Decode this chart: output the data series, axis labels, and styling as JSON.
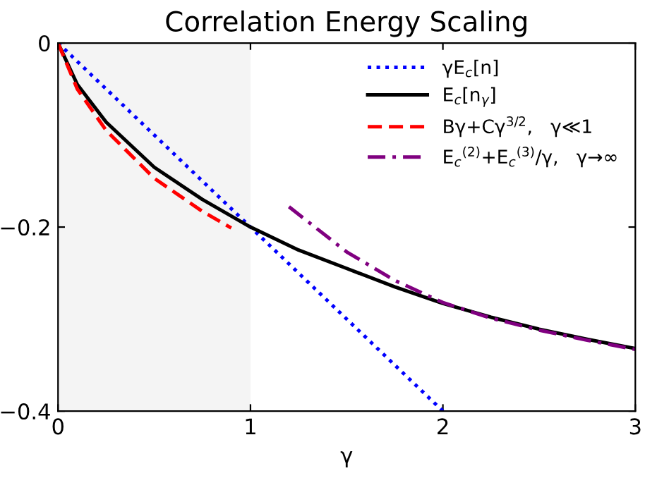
{
  "chart_data": {
    "type": "line",
    "title": "Correlation Energy Scaling",
    "xlabel": "γ",
    "xlim": [
      0,
      3
    ],
    "xticks": [
      0,
      1,
      2,
      3
    ],
    "ylim": [
      -0.4,
      0
    ],
    "yticks": [
      {
        "value": -0.4,
        "label": "−0.4"
      },
      {
        "value": -0.2,
        "label": "−0.2"
      },
      0
    ],
    "grid": false,
    "legend": "top right",
    "bands": [
      {
        "axis": "x",
        "from": 0,
        "to": 1,
        "color": "#f4f4f4"
      }
    ],
    "series": [
      {
        "name": "γE$_{c}$[n]",
        "color": "#0000ff",
        "line_style": "dotted",
        "x": [
          0,
          2
        ],
        "values": [
          0,
          -0.4
        ]
      },
      {
        "name": "E$_{c}$[n$_{γ}$]",
        "color": "#000000",
        "line_style": "solid",
        "x": [
          0,
          0.1,
          0.25,
          0.5,
          0.75,
          1,
          1.25,
          1.5,
          1.75,
          2,
          2.25,
          2.5,
          2.75,
          3
        ],
        "values": [
          0,
          -0.045,
          -0.086,
          -0.135,
          -0.17,
          -0.2,
          -0.225,
          -0.245,
          -0.265,
          -0.283,
          -0.298,
          -0.311,
          -0.322,
          -0.332
        ]
      },
      {
        "name": "Bγ+Cγ$^{3/2}$,   γ≪1",
        "color": "#ff0000",
        "line_style": "dashed",
        "x": [
          0,
          0.1,
          0.25,
          0.5,
          0.75,
          0.9
        ],
        "values": [
          0,
          -0.05,
          -0.095,
          -0.147,
          -0.183,
          -0.201
        ]
      },
      {
        "name": "E$_{c}$$^{(2)}$+E$_{c}$$^{(3)}$/γ,   γ→∞",
        "color": "#800080",
        "line_style": "dashdot",
        "x": [
          1.2,
          1.5,
          1.75,
          2,
          2.25,
          2.5,
          2.75,
          3
        ],
        "values": [
          -0.178,
          -0.227,
          -0.258,
          -0.282,
          -0.299,
          -0.312,
          -0.323,
          -0.333
        ]
      }
    ]
  }
}
